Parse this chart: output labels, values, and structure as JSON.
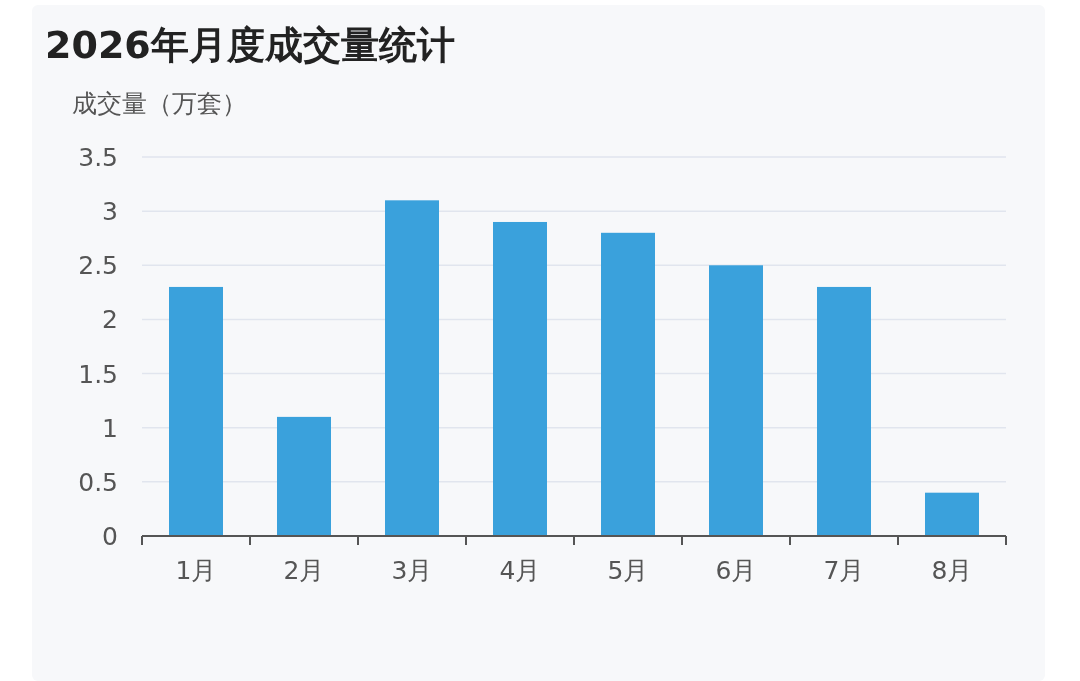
{
  "chart_data": {
    "type": "bar",
    "title": "2026年月度成交量统计",
    "ylabel": "成交量（万套）",
    "categories": [
      "1月",
      "2月",
      "3月",
      "4月",
      "5月",
      "6月",
      "7月",
      "8月"
    ],
    "values": [
      2.3,
      1.1,
      3.1,
      2.9,
      2.8,
      2.5,
      2.3,
      0.4
    ],
    "color": "#3aa1dc",
    "ylim": [
      0,
      3.5
    ],
    "yticks": [
      0,
      0.5,
      1,
      1.5,
      2,
      2.5,
      3,
      3.5
    ],
    "grid": "y"
  }
}
